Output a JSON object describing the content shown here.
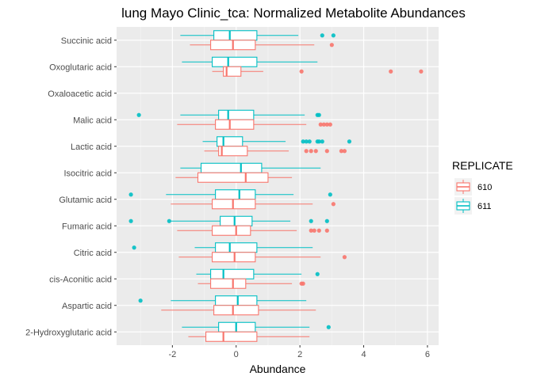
{
  "chart_data": {
    "type": "boxplot",
    "orientation": "horizontal",
    "title": "lung Mayo Clinic_tca: Normalized Metabolite Abundances",
    "xlabel": "Abundance",
    "ylabel": "",
    "xlim": [
      -3.75,
      6.35
    ],
    "xticks": [
      -2,
      0,
      2,
      4,
      6
    ],
    "grid": true,
    "legend_position": "right",
    "legend_title": "REPLICATE",
    "series": [
      {
        "name": "610",
        "color": "#F8766D"
      },
      {
        "name": "611",
        "color": "#00BFC4"
      }
    ],
    "categories": [
      "Succinic acid",
      "Oxoglutaric acid",
      "Oxaloacetic acid",
      "Malic acid",
      "Lactic acid",
      "Isocitric acid",
      "Glutamic acid",
      "Fumaric acid",
      "Citric acid",
      "cis-Aconitic acid",
      "Aspartic acid",
      "2-Hydroxyglutaric acid"
    ],
    "boxes": [
      {
        "category": "Succinic acid",
        "series": "611",
        "whisker_low": -1.75,
        "q1": -0.7,
        "median": -0.2,
        "q3": 0.65,
        "whisker_high": 1.95,
        "outliers": [
          2.7,
          3.05
        ]
      },
      {
        "category": "Succinic acid",
        "series": "610",
        "whisker_low": -1.45,
        "q1": -0.8,
        "median": -0.1,
        "q3": 0.6,
        "whisker_high": 2.45,
        "outliers": [
          3.0
        ]
      },
      {
        "category": "Oxoglutaric acid",
        "series": "611",
        "whisker_low": -1.7,
        "q1": -0.75,
        "median": -0.25,
        "q3": 0.65,
        "whisker_high": 2.55,
        "outliers": []
      },
      {
        "category": "Oxoglutaric acid",
        "series": "610",
        "whisker_low": -0.75,
        "q1": -0.4,
        "median": -0.3,
        "q3": 0.15,
        "whisker_high": 0.85,
        "outliers": [
          2.05,
          4.85,
          5.8
        ]
      },
      {
        "category": "Malic acid",
        "series": "611",
        "whisker_low": -1.75,
        "q1": -0.55,
        "median": -0.25,
        "q3": 0.55,
        "whisker_high": 2.15,
        "outliers": [
          -3.05,
          2.55,
          2.6
        ]
      },
      {
        "category": "Malic acid",
        "series": "610",
        "whisker_low": -1.85,
        "q1": -0.65,
        "median": -0.2,
        "q3": 0.55,
        "whisker_high": 2.2,
        "outliers": [
          2.65,
          2.75,
          2.85,
          2.95
        ]
      },
      {
        "category": "Lactic acid",
        "series": "611",
        "whisker_low": -1.05,
        "q1": -0.6,
        "median": -0.4,
        "q3": 0.2,
        "whisker_high": 1.55,
        "outliers": [
          2.1,
          2.2,
          2.3,
          2.55,
          2.6,
          2.7,
          3.55
        ]
      },
      {
        "category": "Lactic acid",
        "series": "610",
        "whisker_low": -1.0,
        "q1": -0.55,
        "median": -0.45,
        "q3": 0.35,
        "whisker_high": 1.65,
        "outliers": [
          2.2,
          2.35,
          2.5,
          2.85,
          3.3,
          3.4
        ]
      },
      {
        "category": "Isocitric acid",
        "series": "611",
        "whisker_low": -1.75,
        "q1": -1.1,
        "median": 0.15,
        "q3": 0.8,
        "whisker_high": 2.65,
        "outliers": []
      },
      {
        "category": "Isocitric acid",
        "series": "610",
        "whisker_low": -1.9,
        "q1": -1.2,
        "median": 0.3,
        "q3": 1.0,
        "whisker_high": 1.75,
        "outliers": []
      },
      {
        "category": "Glutamic acid",
        "series": "611",
        "whisker_low": -2.2,
        "q1": -0.65,
        "median": 0.1,
        "q3": 0.6,
        "whisker_high": 1.8,
        "outliers": [
          -3.3,
          2.95
        ]
      },
      {
        "category": "Glutamic acid",
        "series": "610",
        "whisker_low": -2.05,
        "q1": -0.75,
        "median": -0.1,
        "q3": 0.6,
        "whisker_high": 2.4,
        "outliers": [
          3.05
        ]
      },
      {
        "category": "Fumaric acid",
        "series": "611",
        "whisker_low": -2.05,
        "q1": -0.5,
        "median": -0.05,
        "q3": 0.5,
        "whisker_high": 1.7,
        "outliers": [
          -3.3,
          -2.1,
          2.35,
          2.85
        ]
      },
      {
        "category": "Fumaric acid",
        "series": "610",
        "whisker_low": -1.85,
        "q1": -0.75,
        "median": 0.0,
        "q3": 0.45,
        "whisker_high": 1.9,
        "outliers": [
          2.35,
          2.45,
          2.6,
          2.85
        ]
      },
      {
        "category": "Citric acid",
        "series": "611",
        "whisker_low": -1.3,
        "q1": -0.65,
        "median": -0.2,
        "q3": 0.65,
        "whisker_high": 2.4,
        "outliers": [
          -3.2
        ]
      },
      {
        "category": "Citric acid",
        "series": "610",
        "whisker_low": -1.8,
        "q1": -0.75,
        "median": -0.05,
        "q3": 0.6,
        "whisker_high": 2.65,
        "outliers": [
          3.4
        ]
      },
      {
        "category": "cis-Aconitic acid",
        "series": "611",
        "whisker_low": -1.25,
        "q1": -0.8,
        "median": -0.4,
        "q3": 0.55,
        "whisker_high": 2.05,
        "outliers": [
          2.55
        ]
      },
      {
        "category": "cis-Aconitic acid",
        "series": "610",
        "whisker_low": -1.2,
        "q1": -0.8,
        "median": -0.1,
        "q3": 0.3,
        "whisker_high": 1.75,
        "outliers": [
          2.05,
          2.1
        ]
      },
      {
        "category": "Aspartic acid",
        "series": "611",
        "whisker_low": -2.05,
        "q1": -0.65,
        "median": 0.05,
        "q3": 0.65,
        "whisker_high": 2.2,
        "outliers": [
          -3.0
        ]
      },
      {
        "category": "Aspartic acid",
        "series": "610",
        "whisker_low": -2.35,
        "q1": -0.7,
        "median": -0.1,
        "q3": 0.7,
        "whisker_high": 2.5,
        "outliers": []
      },
      {
        "category": "2-Hydroxyglutaric acid",
        "series": "611",
        "whisker_low": -1.7,
        "q1": -0.55,
        "median": 0.0,
        "q3": 0.6,
        "whisker_high": 2.3,
        "outliers": [
          2.9
        ]
      },
      {
        "category": "2-Hydroxyglutaric acid",
        "series": "610",
        "whisker_low": -1.5,
        "q1": -0.95,
        "median": -0.4,
        "q3": 0.65,
        "whisker_high": 2.3,
        "outliers": []
      }
    ]
  }
}
